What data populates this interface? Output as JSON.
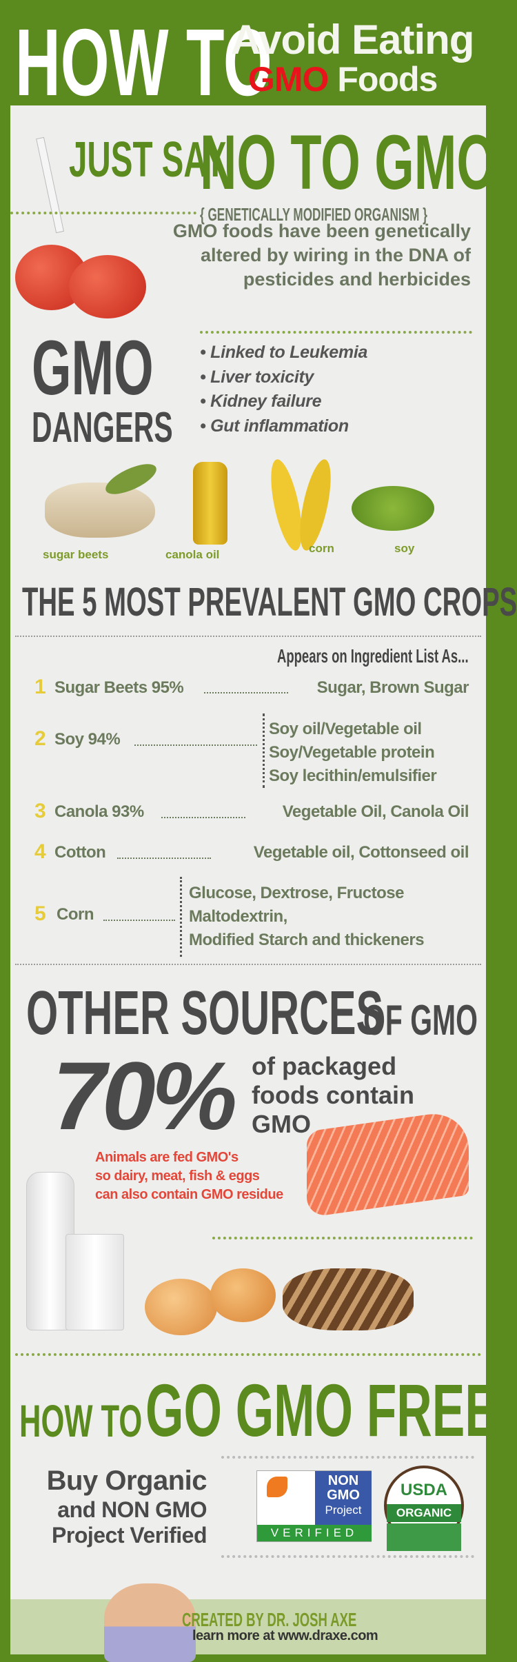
{
  "header": {
    "how_to": "HOW TO",
    "line1": "Avoid Eating",
    "gmo": "GMO",
    "foods": "Foods"
  },
  "intro": {
    "just_say": "JUST SAY",
    "no_to_gmo": "NO TO GMO",
    "acronym": "{ GENETICALLY MODIFIED ORGANISM }",
    "description": [
      "GMO foods have been genetically",
      "altered by wiring in the DNA of",
      "pesticides and herbicides"
    ]
  },
  "dangers": {
    "title_top": "GMO",
    "title_bottom": "DANGERS",
    "items": [
      "• Linked to Leukemia",
      "• Liver toxicity",
      "• Kidney failure",
      "• Gut inflammation"
    ]
  },
  "foods": {
    "items": [
      "sugar beets",
      "canola oil",
      "corn",
      "soy"
    ]
  },
  "crops": {
    "title": "THE 5 MOST PREVALENT GMO CROPS",
    "column_header": "Appears on Ingredient List As...",
    "rows": [
      {
        "num": "1",
        "crop": "Sugar Beets 95%",
        "ingredients": [
          "Sugar, Brown Sugar"
        ]
      },
      {
        "num": "2",
        "crop": "Soy 94%",
        "ingredients": [
          "Soy oil/Vegetable oil",
          "Soy/Vegetable protein",
          "Soy lecithin/emulsifier"
        ]
      },
      {
        "num": "3",
        "crop": "Canola 93%",
        "ingredients": [
          "Vegetable Oil, Canola Oil"
        ]
      },
      {
        "num": "4",
        "crop": "Cotton",
        "ingredients": [
          "Vegetable oil, Cottonseed oil"
        ]
      },
      {
        "num": "5",
        "crop": "Corn",
        "ingredients": [
          "Glucose, Dextrose, Fructose",
          "Maltodextrin,",
          "Modified Starch and thickeners"
        ]
      }
    ]
  },
  "other": {
    "title_big": "OTHER SOURCES",
    "title_small": "OF GMO",
    "stat": "70%",
    "stat_text": [
      "of packaged",
      "foods contain",
      "GMO"
    ],
    "animals": [
      "Animals are fed GMO's",
      "so dairy, meat, fish & eggs",
      "can also contain GMO residue"
    ]
  },
  "gofree": {
    "how_to": "HOW TO",
    "title": "GO GMO FREE",
    "advice": [
      "Buy Organic",
      "and NON GMO",
      "Project Verified"
    ],
    "nongmo_logo": {
      "line1": "NON",
      "line2": "GMO",
      "line3": "Project",
      "verified": "VERIFIED"
    },
    "usda_logo": {
      "top": "USDA",
      "band": "ORGANIC"
    }
  },
  "footer": {
    "created_by": "CREATED BY DR. JOSH AXE",
    "learn_more": "learn more at www.draxe.com"
  },
  "colors": {
    "green": "#5b8a1e",
    "panel": "#eeeeec",
    "red": "#e8141b",
    "number_yellow": "#e6cc3a",
    "text_gray": "#4a4a4a"
  }
}
